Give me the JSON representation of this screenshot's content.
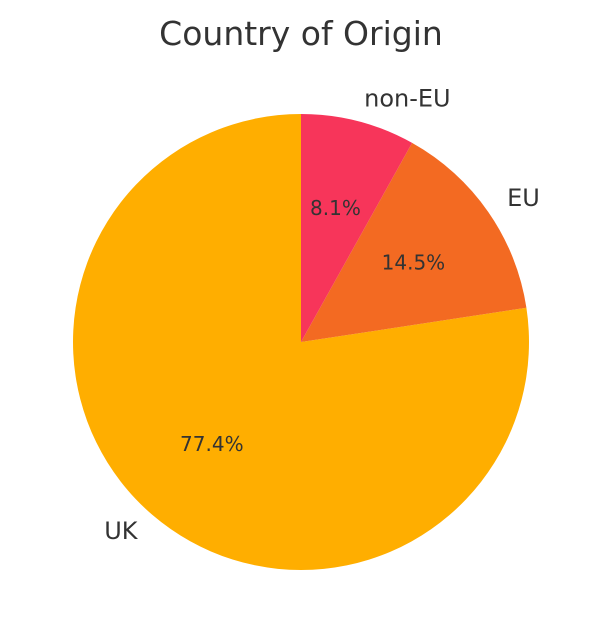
{
  "chart_data": {
    "type": "pie",
    "title": "Country of Origin",
    "start_angle_deg": 90,
    "direction": "counterclockwise",
    "slices": [
      {
        "label": "UK",
        "value": 77.4,
        "pct_label": "77.4%",
        "color": "#FFAE00"
      },
      {
        "label": "EU",
        "value": 14.5,
        "pct_label": "14.5%",
        "color": "#F36A22"
      },
      {
        "label": "non-EU",
        "value": 8.1,
        "pct_label": "8.1%",
        "color": "#F7355A"
      }
    ]
  }
}
